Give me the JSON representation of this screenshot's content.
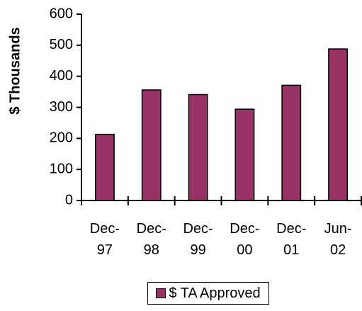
{
  "chart_data": {
    "type": "bar",
    "y_label": "$ Thousands",
    "categories": [
      "Dec-97",
      "Dec-98",
      "Dec-99",
      "Dec-00",
      "Dec-01",
      "Jun-02"
    ],
    "series": [
      {
        "name": "$ TA Approved",
        "color": "#993366",
        "values": [
          213,
          356,
          341,
          294,
          371,
          488
        ]
      }
    ],
    "ylim": [
      0,
      600
    ],
    "yticks": [
      0,
      100,
      200,
      300,
      400,
      500,
      600
    ],
    "grid": false,
    "legend": "bottom"
  }
}
